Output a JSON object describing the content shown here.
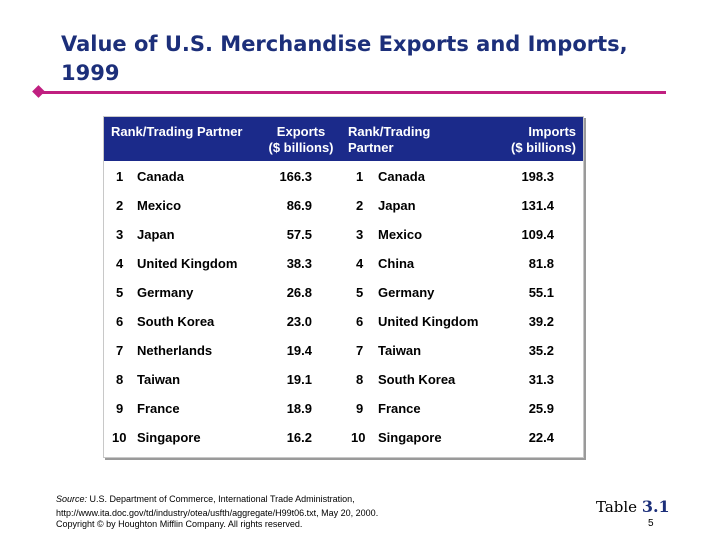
{
  "slide": {
    "title_line1": "Value of U.S. Merchandise Exports and Imports,",
    "title_line2": "1999",
    "table_label_word": "Table",
    "table_label_number": "3.1",
    "page_number": "5"
  },
  "table": {
    "headers": {
      "rank_exports": "Rank/Trading Partner",
      "exports_line1": "Exports",
      "exports_line2": "($ billions)",
      "rank_imports_line1": "Rank/Trading",
      "rank_imports_line2": "Partner",
      "imports_line1": "Imports",
      "imports_line2": "($ billions)"
    },
    "rows": [
      {
        "exp_rank": "1",
        "exp_partner": "Canada",
        "exp_value": "166.3",
        "imp_rank": "1",
        "imp_partner": "Canada",
        "imp_value": "198.3"
      },
      {
        "exp_rank": "2",
        "exp_partner": "Mexico",
        "exp_value": "86.9",
        "imp_rank": "2",
        "imp_partner": "Japan",
        "imp_value": "131.4"
      },
      {
        "exp_rank": "3",
        "exp_partner": "Japan",
        "exp_value": "57.5",
        "imp_rank": "3",
        "imp_partner": "Mexico",
        "imp_value": "109.4"
      },
      {
        "exp_rank": "4",
        "exp_partner": "United Kingdom",
        "exp_value": "38.3",
        "imp_rank": "4",
        "imp_partner": "China",
        "imp_value": "81.8"
      },
      {
        "exp_rank": "5",
        "exp_partner": "Germany",
        "exp_value": "26.8",
        "imp_rank": "5",
        "imp_partner": "Germany",
        "imp_value": "55.1"
      },
      {
        "exp_rank": "6",
        "exp_partner": "South Korea",
        "exp_value": "23.0",
        "imp_rank": "6",
        "imp_partner": "United Kingdom",
        "imp_value": "39.2"
      },
      {
        "exp_rank": "7",
        "exp_partner": "Netherlands",
        "exp_value": "19.4",
        "imp_rank": "7",
        "imp_partner": "Taiwan",
        "imp_value": "35.2"
      },
      {
        "exp_rank": "8",
        "exp_partner": "Taiwan",
        "exp_value": "19.1",
        "imp_rank": "8",
        "imp_partner": "South Korea",
        "imp_value": "31.3"
      },
      {
        "exp_rank": "9",
        "exp_partner": "France",
        "exp_value": "18.9",
        "imp_rank": "9",
        "imp_partner": "France",
        "imp_value": "25.9"
      },
      {
        "exp_rank": "10",
        "exp_partner": "Singapore",
        "exp_value": "16.2",
        "imp_rank": "10",
        "imp_partner": "Singapore",
        "imp_value": "22.4"
      }
    ]
  },
  "footer": {
    "source_label": "Source:",
    "source_line1": " U.S. Department of Commerce, International Trade Administration,",
    "source_line2": "http://www.ita.doc.gov/td/industry/otea/usfth/aggregate/H99t06.txt, May 20, 2000.",
    "copyright": "Copyright © by Houghton Mifflin Company. All rights reserved."
  },
  "colors": {
    "title": "#1c2f7a",
    "accent_rule": "#c01f80",
    "table_header_bg": "#1b2a8a"
  }
}
